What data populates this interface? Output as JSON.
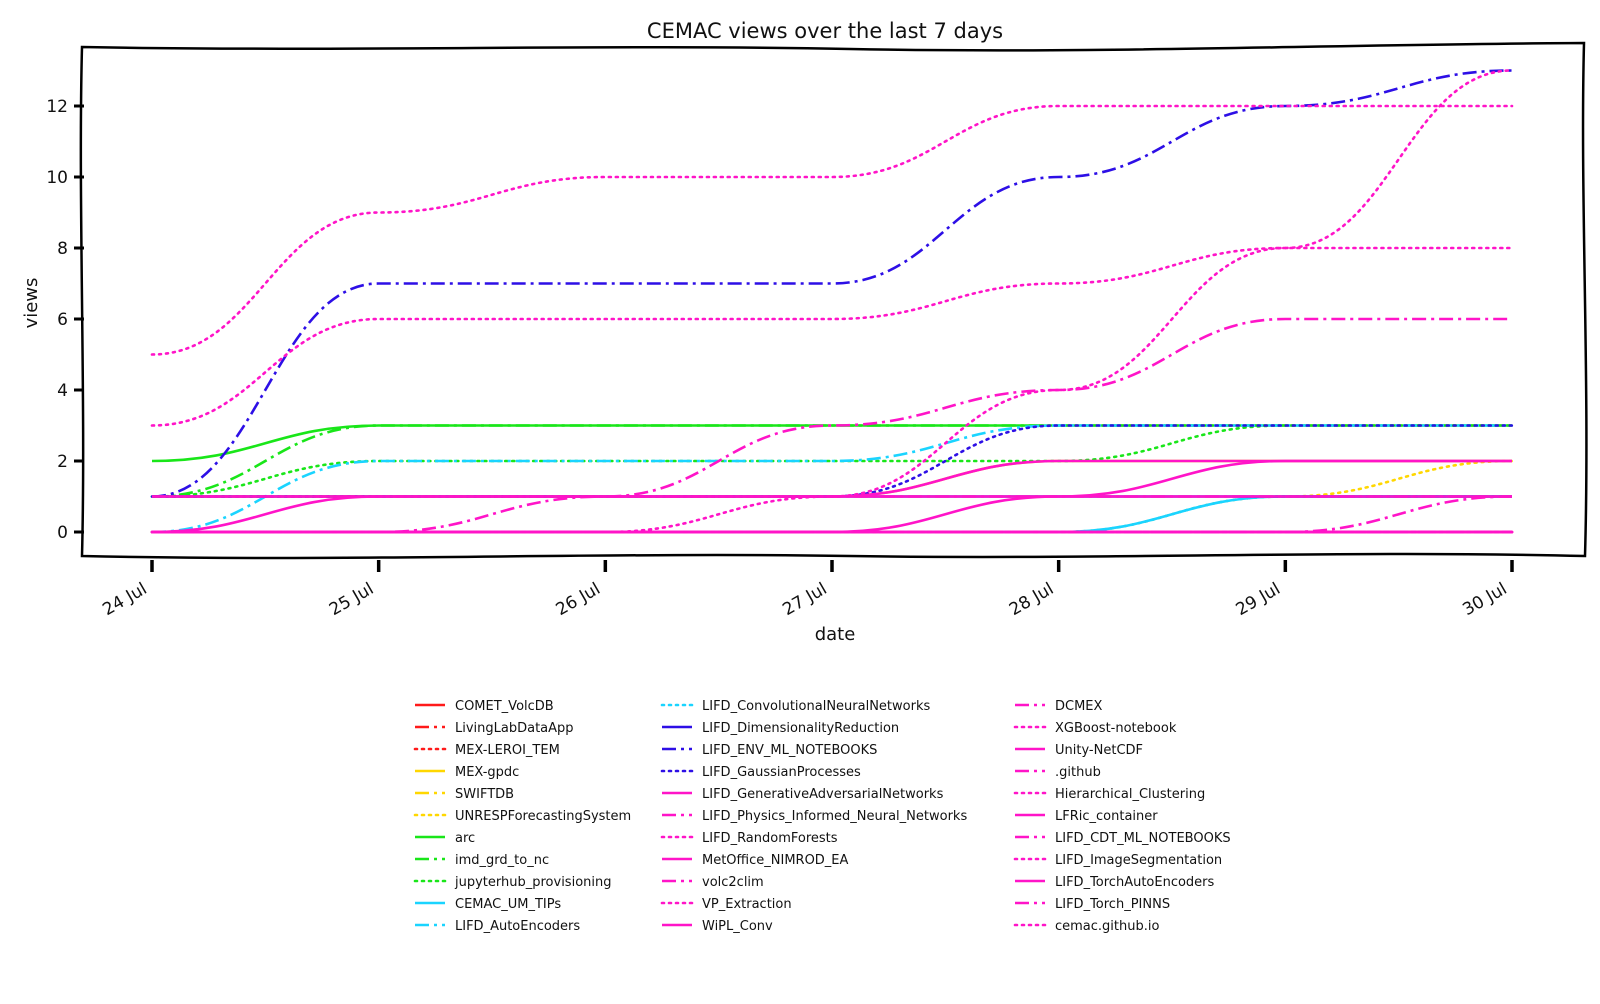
{
  "chart_data": {
    "type": "line",
    "title": "CEMAC views over the last 7 days",
    "xlabel": "date",
    "ylabel": "views",
    "categories": [
      "24 Jul",
      "25 Jul",
      "26 Jul",
      "27 Jul",
      "28 Jul",
      "29 Jul",
      "30 Jul"
    ],
    "yticks": [
      0,
      2,
      4,
      6,
      8,
      10,
      12
    ],
    "ylim": [
      -0.7,
      13.6
    ],
    "grid": false,
    "legend_position": "bottom-center",
    "series": [
      {
        "name": "COMET_VolcDB",
        "color": "#ff1a1a",
        "style": "solid",
        "values": [
          0,
          0,
          0,
          0,
          0,
          0,
          0
        ]
      },
      {
        "name": "LivingLabDataApp",
        "color": "#ff1a1a",
        "style": "dashdot",
        "values": [
          0,
          0,
          0,
          0,
          0,
          0,
          0
        ]
      },
      {
        "name": "MEX-LEROI_TEM",
        "color": "#ff1a1a",
        "style": "dotted",
        "values": [
          0,
          0,
          0,
          0,
          0,
          0,
          0
        ]
      },
      {
        "name": "MEX-gpdc",
        "color": "#ffd700",
        "style": "solid",
        "values": [
          1,
          1,
          1,
          1,
          2,
          2,
          2
        ]
      },
      {
        "name": "SWIFTDB",
        "color": "#ffd700",
        "style": "dashdot",
        "values": [
          0,
          0,
          0,
          0,
          0,
          0,
          0
        ]
      },
      {
        "name": "UNRESPForecastingSystem",
        "color": "#ffd700",
        "style": "dotted",
        "values": [
          0,
          0,
          0,
          0,
          0,
          1,
          2
        ]
      },
      {
        "name": "arc",
        "color": "#19e619",
        "style": "solid",
        "values": [
          2,
          3,
          3,
          3,
          3,
          3,
          3
        ]
      },
      {
        "name": "imd_grd_to_nc",
        "color": "#19e619",
        "style": "dashdot",
        "values": [
          1,
          3,
          3,
          3,
          3,
          3,
          3
        ]
      },
      {
        "name": "jupyterhub_provisioning",
        "color": "#19e619",
        "style": "dotted",
        "values": [
          1,
          2,
          2,
          2,
          2,
          3,
          3
        ]
      },
      {
        "name": "CEMAC_UM_TIPs",
        "color": "#1ad4ff",
        "style": "solid",
        "values": [
          0,
          0,
          0,
          0,
          0,
          1,
          1
        ]
      },
      {
        "name": "LIFD_AutoEncoders",
        "color": "#1ad4ff",
        "style": "dashdot",
        "values": [
          0,
          2,
          2,
          2,
          3,
          3,
          3
        ]
      },
      {
        "name": "LIFD_ConvolutionalNeuralNetworks",
        "color": "#1ad4ff",
        "style": "dotted",
        "values": [
          0,
          0,
          0,
          0,
          0,
          1,
          1
        ]
      },
      {
        "name": "LIFD_DimensionalityReduction",
        "color": "#2d0fe6",
        "style": "solid",
        "values": [
          1,
          1,
          1,
          1,
          1,
          1,
          1
        ]
      },
      {
        "name": "LIFD_ENV_ML_NOTEBOOKS",
        "color": "#2d0fe6",
        "style": "dashdot",
        "values": [
          1,
          7,
          7,
          7,
          10,
          12,
          13
        ]
      },
      {
        "name": "LIFD_GaussianProcesses",
        "color": "#2d0fe6",
        "style": "dotted",
        "values": [
          1,
          1,
          1,
          1,
          3,
          3,
          3
        ]
      },
      {
        "name": "LIFD_GenerativeAdversarialNetworks",
        "color": "#ff14c8",
        "style": "solid",
        "values": [
          1,
          1,
          1,
          1,
          1,
          1,
          1
        ]
      },
      {
        "name": "LIFD_Physics_Informed_Neural_Networks",
        "color": "#ff14c8",
        "style": "dashdot",
        "values": [
          0,
          0,
          1,
          3,
          4,
          6,
          6
        ]
      },
      {
        "name": "LIFD_RandomForests",
        "color": "#ff14c8",
        "style": "dotted",
        "values": [
          0,
          0,
          0,
          1,
          4,
          8,
          13
        ]
      },
      {
        "name": "MetOffice_NIMROD_EA",
        "color": "#ff14c8",
        "style": "solid",
        "values": [
          0,
          0,
          0,
          0,
          1,
          2,
          2
        ]
      },
      {
        "name": "volc2clim",
        "color": "#ff14c8",
        "style": "dashdot",
        "values": [
          0,
          0,
          0,
          0,
          0,
          0,
          1
        ]
      },
      {
        "name": "VP_Extraction",
        "color": "#ff14c8",
        "style": "dotted",
        "values": [
          3,
          6,
          6,
          6,
          7,
          8,
          8
        ]
      },
      {
        "name": "WiPL_Conv",
        "color": "#ff14c8",
        "style": "solid",
        "values": [
          0,
          1,
          1,
          1,
          2,
          2,
          2
        ]
      },
      {
        "name": "DCMEX",
        "color": "#ff14c8",
        "style": "dashdot",
        "values": [
          0,
          0,
          0,
          0,
          0,
          0,
          0
        ]
      },
      {
        "name": "XGBoost-notebook",
        "color": "#ff14c8",
        "style": "dotted",
        "values": [
          5,
          9,
          10,
          10,
          12,
          12,
          12
        ]
      },
      {
        "name": "Unity-NetCDF",
        "color": "#ff14c8",
        "style": "solid",
        "values": [
          0,
          0,
          0,
          0,
          0,
          0,
          0
        ]
      },
      {
        "name": ".github",
        "color": "#ff14c8",
        "style": "dashdot",
        "values": [
          0,
          0,
          0,
          0,
          0,
          0,
          0
        ]
      },
      {
        "name": "Hierarchical_Clustering",
        "color": "#ff14c8",
        "style": "dotted",
        "values": [
          0,
          0,
          0,
          0,
          0,
          0,
          0
        ]
      },
      {
        "name": "LFRic_container",
        "color": "#ff14c8",
        "style": "solid",
        "values": [
          0,
          0,
          0,
          0,
          0,
          0,
          0
        ]
      },
      {
        "name": "LIFD_CDT_ML_NOTEBOOKS",
        "color": "#ff14c8",
        "style": "dashdot",
        "values": [
          1,
          1,
          1,
          1,
          1,
          1,
          1
        ]
      },
      {
        "name": "LIFD_ImageSegmentation",
        "color": "#ff14c8",
        "style": "dotted",
        "values": [
          0,
          0,
          0,
          0,
          0,
          0,
          0
        ]
      },
      {
        "name": "LIFD_TorchAutoEncoders",
        "color": "#ff14c8",
        "style": "solid",
        "values": [
          0,
          0,
          0,
          0,
          0,
          0,
          0
        ]
      },
      {
        "name": "LIFD_Torch_PINNS",
        "color": "#ff14c8",
        "style": "dashdot",
        "values": [
          0,
          0,
          0,
          0,
          0,
          0,
          0
        ]
      },
      {
        "name": "cemac.github.io",
        "color": "#ff14c8",
        "style": "dotted",
        "values": [
          0,
          0,
          0,
          0,
          0,
          0,
          0
        ]
      }
    ]
  }
}
